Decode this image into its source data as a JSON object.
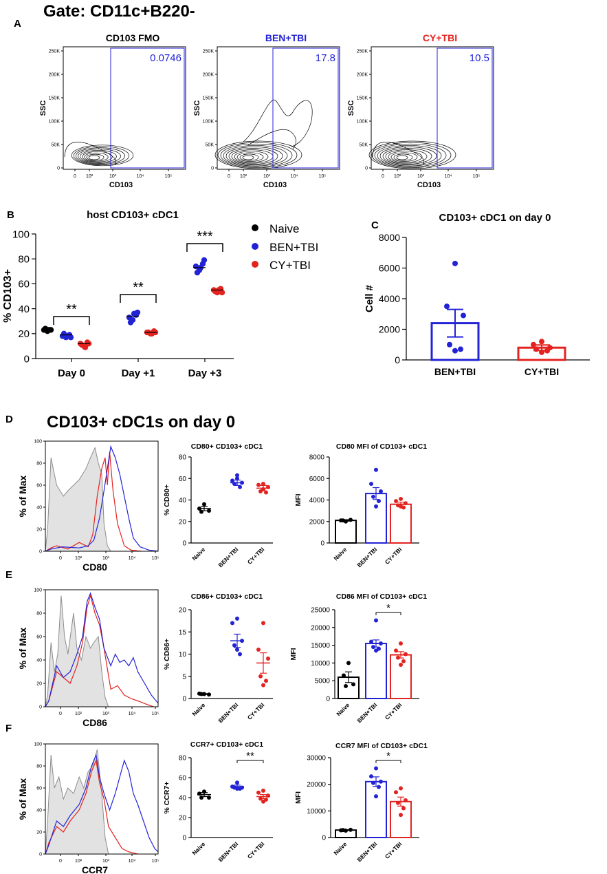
{
  "panels": {
    "A": {
      "letter": "A",
      "gate_title": "Gate: CD11c+B220-",
      "plots": [
        {
          "title": "CD103 FMO",
          "title_color": "#000000",
          "gate_value": "0.0746"
        },
        {
          "title": "BEN+TBI",
          "title_color": "#2323d6",
          "gate_value": "17.8"
        },
        {
          "title": "CY+TBI",
          "title_color": "#e3231f",
          "gate_value": "10.5"
        }
      ],
      "y_label": "SSC",
      "x_label": "CD103",
      "y_ticks": [
        "0",
        "50K",
        "100K",
        "150K",
        "200K",
        "250K"
      ],
      "x_ticks": [
        "0",
        "10²",
        "10³",
        "10⁴",
        "10⁵"
      ]
    },
    "B": {
      "letter": "B"
    },
    "C": {
      "letter": "C"
    },
    "D": {
      "letter": "D",
      "section_title": "CD103+ cDC1s on day 0"
    },
    "E": {
      "letter": "E"
    },
    "F": {
      "letter": "F"
    },
    "histograms": {
      "y_label": "% of Max",
      "y_ticks": [
        "0",
        "20",
        "40",
        "60",
        "80",
        "100"
      ],
      "x_ticks": [
        "0",
        "10²",
        "10³",
        "10⁴",
        "10⁵"
      ],
      "markers": [
        "CD80",
        "CD86",
        "CCR7"
      ]
    },
    "legend": {
      "entries": [
        {
          "name": "Naive",
          "color": "#000000"
        },
        {
          "name": "BEN+TBI",
          "color": "#2323d6"
        },
        {
          "name": "CY+TBI",
          "color": "#e3231f"
        }
      ]
    }
  },
  "colors": {
    "naive": "#000000",
    "ben": "#2323d6",
    "cy": "#e3231f"
  },
  "chart_data": [
    {
      "id": "B",
      "type": "scatter",
      "title": "host CD103+ cDC1",
      "xlabel": "",
      "ylabel": "% CD103+",
      "ylim": [
        0,
        100
      ],
      "y_ticks": [
        0,
        20,
        40,
        60,
        80,
        100
      ],
      "categories": [
        "Day 0",
        "Day +1",
        "Day +3"
      ],
      "series": [
        {
          "name": "Naive",
          "color": "#000000",
          "groups": [
            [
              23,
              22,
              23,
              24,
              23
            ],
            null,
            null
          ],
          "means": [
            23,
            null,
            null
          ]
        },
        {
          "name": "BEN+TBI",
          "color": "#2323d6",
          "groups": [
            [
              18,
              17,
              19,
              20,
              18,
              17
            ],
            [
              33,
              31,
              35,
              29,
              36,
              37
            ],
            [
              74,
              71,
              76,
              69,
              73,
              79
            ]
          ],
          "means": [
            19,
            34,
            73
          ]
        },
        {
          "name": "CY+TBI",
          "color": "#e3231f",
          "groups": [
            [
              12,
              10,
              13,
              11,
              9,
              12
            ],
            [
              21,
              20,
              22,
              21,
              20,
              21
            ],
            [
              55,
              53,
              56,
              54,
              55,
              53
            ]
          ],
          "means": [
            12,
            21,
            55
          ]
        }
      ],
      "significance": [
        {
          "category": "Day 0",
          "label": "**"
        },
        {
          "category": "Day +1",
          "label": "**"
        },
        {
          "category": "Day +3",
          "label": "***"
        }
      ]
    },
    {
      "id": "C",
      "type": "bar",
      "title": "CD103+ cDC1 on day 0",
      "xlabel": "",
      "ylabel": "Cell #",
      "ylim": [
        0,
        8000
      ],
      "y_ticks": [
        0,
        2000,
        4000,
        6000,
        8000
      ],
      "categories": [
        "BEN+TBI",
        "CY+TBI"
      ],
      "colors": [
        "#2323d6",
        "#e3231f"
      ],
      "values": [
        2400,
        800
      ],
      "errors": [
        900,
        180
      ],
      "points": [
        [
          6300,
          3500,
          2900,
          1000,
          700,
          600
        ],
        [
          1200,
          1000,
          800,
          700,
          600,
          500
        ]
      ]
    },
    {
      "id": "D1",
      "type": "scatter",
      "title": "CD80+ CD103+ cDC1",
      "ylabel": "% CD80+",
      "ylim": [
        0,
        80
      ],
      "y_ticks": [
        0,
        20,
        40,
        60,
        80
      ],
      "categories": [
        "Naive",
        "BEN+TBI",
        "CY+TBI"
      ],
      "colors": [
        "#000000",
        "#2323d6",
        "#e3231f"
      ],
      "means": [
        32,
        56,
        51
      ],
      "errors": [
        2,
        2.5,
        2.5
      ],
      "points": [
        [
          36,
          32,
          30,
          29
        ],
        [
          63,
          58,
          56,
          55,
          52,
          60
        ],
        [
          55,
          54,
          52,
          48,
          47,
          50
        ]
      ]
    },
    {
      "id": "D2",
      "type": "bar",
      "title": "CD80 MFI of CD103+ cDC1",
      "ylabel": "MFI",
      "ylim": [
        0,
        8000
      ],
      "y_ticks": [
        0,
        2000,
        4000,
        6000,
        8000
      ],
      "categories": [
        "Naive",
        "BEN+TBI",
        "CY+TBI"
      ],
      "colors": [
        "#000000",
        "#2323d6",
        "#e3231f"
      ],
      "values": [
        2100,
        4600,
        3600
      ],
      "errors": [
        70,
        550,
        200
      ],
      "points": [
        [
          2000,
          2100,
          2150,
          2100
        ],
        [
          6800,
          5500,
          4800,
          4300,
          3900,
          3400
        ],
        [
          4100,
          3900,
          3700,
          3500,
          3300,
          3400
        ]
      ]
    },
    {
      "id": "E1",
      "type": "scatter",
      "title": "CD86+ CD103+ cDC1",
      "ylabel": "% CD86+",
      "ylim": [
        0,
        20
      ],
      "y_ticks": [
        0,
        5,
        10,
        15,
        20
      ],
      "categories": [
        "Naive",
        "BEN+TBI",
        "CY+TBI"
      ],
      "colors": [
        "#000000",
        "#2323d6",
        "#e3231f"
      ],
      "means": [
        1,
        13,
        8
      ],
      "errors": [
        0.1,
        1.5,
        2.3
      ],
      "points": [
        [
          1,
          1.1,
          0.9,
          1
        ],
        [
          18,
          17,
          13,
          12,
          10,
          11
        ],
        [
          17,
          11,
          9,
          5,
          4,
          3
        ]
      ]
    },
    {
      "id": "E2",
      "type": "bar",
      "title": "CD86 MFI of CD103+ cDC1",
      "ylabel": "MFI",
      "ylim": [
        0,
        25000
      ],
      "y_ticks": [
        0,
        5000,
        10000,
        15000,
        20000,
        25000
      ],
      "categories": [
        "Naive",
        "BEN+TBI",
        "CY+TBI"
      ],
      "colors": [
        "#000000",
        "#2323d6",
        "#e3231f"
      ],
      "values": [
        6000,
        15500,
        12300
      ],
      "errors": [
        1500,
        1000,
        900
      ],
      "points": [
        [
          10000,
          6500,
          4000,
          3500
        ],
        [
          22000,
          16000,
          15500,
          14500,
          14000,
          13500
        ],
        [
          15500,
          13500,
          12500,
          11500,
          10500,
          9500
        ]
      ],
      "significance": [
        {
          "from": "BEN+TBI",
          "to": "CY+TBI",
          "label": "*"
        }
      ]
    },
    {
      "id": "F1",
      "type": "scatter",
      "title": "CCR7+ CD103+ cDC1",
      "ylabel": "% CCR7+",
      "ylim": [
        0,
        80
      ],
      "y_ticks": [
        0,
        20,
        40,
        60,
        80
      ],
      "categories": [
        "Naive",
        "BEN+TBI",
        "CY+TBI"
      ],
      "colors": [
        "#000000",
        "#2323d6",
        "#e3231f"
      ],
      "means": [
        43,
        51,
        41
      ],
      "errors": [
        2,
        1.5,
        2
      ],
      "points": [
        [
          46,
          44,
          40,
          40
        ],
        [
          55,
          51,
          50,
          50,
          49,
          49
        ],
        [
          47,
          45,
          42,
          39,
          38,
          36
        ]
      ],
      "significance": [
        {
          "from": "BEN+TBI",
          "to": "CY+TBI",
          "label": "**"
        }
      ]
    },
    {
      "id": "F2",
      "type": "bar",
      "title": "CCR7 MFI of CD103+ cDC1",
      "ylabel": "MFI",
      "ylim": [
        0,
        30000
      ],
      "y_ticks": [
        0,
        10000,
        20000,
        30000
      ],
      "categories": [
        "Naive",
        "BEN+TBI",
        "CY+TBI"
      ],
      "colors": [
        "#000000",
        "#2323d6",
        "#e3231f"
      ],
      "values": [
        2800,
        21000,
        13500
      ],
      "errors": [
        150,
        1800,
        1700
      ],
      "points": [
        [
          2600,
          2700,
          2900,
          2800
        ],
        [
          26000,
          23000,
          21000,
          20500,
          19000,
          15500
        ],
        [
          18500,
          17000,
          14000,
          13000,
          11000,
          8500
        ]
      ],
      "significance": [
        {
          "from": "BEN+TBI",
          "to": "CY+TBI",
          "label": "*"
        }
      ]
    }
  ]
}
